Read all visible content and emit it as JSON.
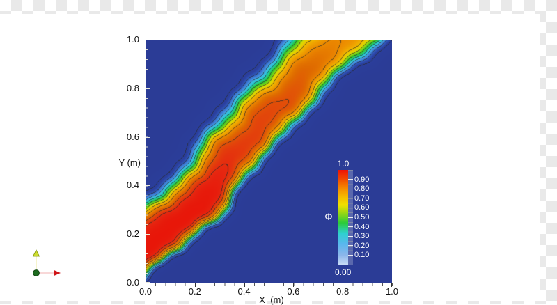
{
  "background": {
    "checker_gray": "#e9e9e9",
    "checker_white": "#ffffff",
    "sheet_white": "#ffffff"
  },
  "chart_data": {
    "type": "contour",
    "title": "",
    "xlabel": "X  (m)",
    "ylabel": "Y (m)",
    "xlim": [
      0,
      1
    ],
    "ylim": [
      0,
      1
    ],
    "x_ticks": [
      "0.0",
      "0.2",
      "0.4",
      "0.6",
      "0.8",
      "1.0"
    ],
    "y_ticks": [
      "1.0",
      "0.8",
      "0.6",
      "0.4",
      "0.2",
      "0.0"
    ],
    "minor_ticks_per_interval": 5,
    "grid": false,
    "field_background_color": "#2b3c96",
    "contour_line_color": "#2a2a2a",
    "contour_levels": [
      0.1,
      0.2,
      0.3,
      0.4,
      0.5,
      0.6,
      0.7,
      0.8,
      0.9,
      0.95
    ],
    "colormap": [
      [
        0.0,
        "#2b3c96"
      ],
      [
        0.13,
        "#2b3f9e"
      ],
      [
        0.18,
        "#2f54b8"
      ],
      [
        0.24,
        "#3f7fd8"
      ],
      [
        0.3,
        "#45aee8"
      ],
      [
        0.36,
        "#2cc8d8"
      ],
      [
        0.42,
        "#1fcf9f"
      ],
      [
        0.47,
        "#27c845"
      ],
      [
        0.53,
        "#4fce1f"
      ],
      [
        0.58,
        "#94d610"
      ],
      [
        0.63,
        "#d8dc00"
      ],
      [
        0.68,
        "#eec400"
      ],
      [
        0.74,
        "#f0a800"
      ],
      [
        0.8,
        "#ec8a00"
      ],
      [
        0.86,
        "#df6a00"
      ],
      [
        0.91,
        "#e24a0a"
      ],
      [
        0.96,
        "#e62510"
      ],
      [
        1.0,
        "#e81408"
      ]
    ],
    "field_model": {
      "description": "scalar band Phi convected at 45 deg from lower-left inlet toward upper-right, peak ~1.0 near inlet decaying to ~0.75 downstream, with wavy dispersive contours",
      "center_offset": 0.165,
      "center_slope": 0.05,
      "half_width": 0.15,
      "sigma_upper": [
        0.075,
        0.03
      ],
      "sigma_lower": [
        0.04,
        0.03
      ],
      "amp_decay_start": 0.32,
      "amp_decay_slope": 0.3,
      "amp_bump": [
        0.022,
        9.5,
        1.2
      ],
      "wiggle": [
        [
          0.03,
          7.5,
          2.6
        ],
        [
          0.015,
          16,
          0.5
        ],
        [
          0.008,
          31,
          1.8
        ]
      ],
      "fine_wiggle": [
        [
          0.006,
          27,
          14,
          1.0
        ],
        [
          0.005,
          9,
          33,
          2.2
        ],
        [
          0.004,
          51,
          47,
          0.4
        ]
      ]
    },
    "colorbar": {
      "title": "Φ",
      "top_label": "1.0",
      "bottom_label": "0.00",
      "tick_labels": [
        "0.90",
        "0.80",
        "0.70",
        "0.60",
        "0.50",
        "0.40",
        "0.30",
        "0.20",
        "0.10"
      ],
      "gradient_stops": [
        "#c9dcf5 0%",
        "#8cb6ea 10%",
        "#59b7ee 22%",
        "#2ed0cf 33%",
        "#2bcb3a 44%",
        "#9ed812 55%",
        "#f0e000 63%",
        "#f4b900 72%",
        "#f48100 82%",
        "#f04500 91%",
        "#ee1206 100%"
      ]
    }
  },
  "triad": {
    "up_axis_fill": "#cddd2e",
    "up_axis_stroke": "#7a8f00",
    "up_shaft": "#f4f2c0",
    "right_shaft": "#f6cccc",
    "right_arrow_fill": "#cf1518",
    "origin_fill": "#1d6b1f",
    "origin_stroke": "#124512"
  }
}
